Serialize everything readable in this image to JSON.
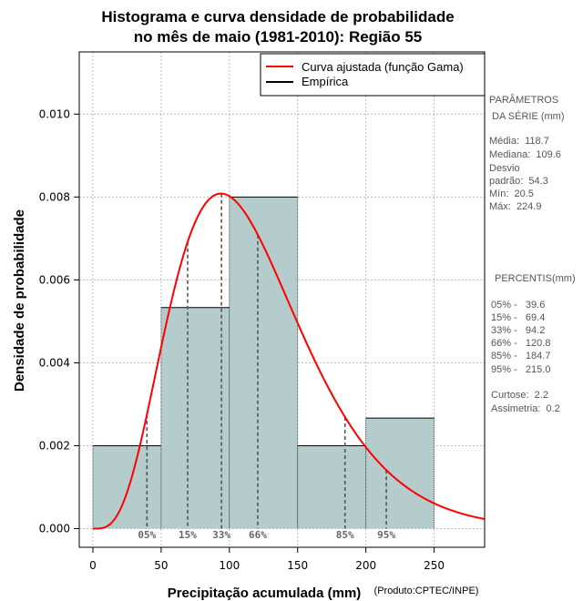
{
  "chart_data": {
    "type": "histogram",
    "title_lines": [
      "Histograma e curva densidade de probabilidade",
      "no mês de maio (1981-2010): Região 55"
    ],
    "xlabel": "Precipitação acumulada (mm)",
    "ylabel": "Densidade de probabilidade",
    "credit": "(Produto:CPTEC/INPE)",
    "xlim": [
      -10,
      287
    ],
    "ylim": [
      -0.00045,
      0.0115
    ],
    "x_ticks": [
      0,
      50,
      100,
      150,
      200,
      250
    ],
    "y_ticks": [
      0.0,
      0.002,
      0.004,
      0.006,
      0.008,
      0.01
    ],
    "y_tick_labels": [
      "0.000",
      "0.002",
      "0.004",
      "0.006",
      "0.008",
      "0.010"
    ],
    "grid": true,
    "bins": [
      {
        "start": 0,
        "end": 50,
        "density": 0.002
      },
      {
        "start": 50,
        "end": 100,
        "density": 0.005333
      },
      {
        "start": 100,
        "end": 150,
        "density": 0.008
      },
      {
        "start": 150,
        "end": 200,
        "density": 0.002
      },
      {
        "start": 200,
        "end": 250,
        "density": 0.002667
      }
    ],
    "fitted_curve": {
      "distribution": "gamma",
      "mean": 118.7,
      "sd": 54.3
    },
    "percentile_markers": [
      {
        "label": "05%",
        "value": 39.6
      },
      {
        "label": "15%",
        "value": 69.4
      },
      {
        "label": "33%",
        "value": 94.2
      },
      {
        "label": "66%",
        "value": 120.8
      },
      {
        "label": "85%",
        "value": 184.7
      },
      {
        "label": "95%",
        "value": 215.0
      }
    ],
    "legend": {
      "position": "top-right",
      "entries": [
        {
          "label": "Curva ajustada (função Gama)",
          "color": "#ff0000"
        },
        {
          "label": "Empírica",
          "color": "#000000"
        }
      ]
    },
    "colors": {
      "bar_fill": "#b4cccc",
      "curve": "#ff0000",
      "grid": "#bbbbbb",
      "marker": "#555555"
    }
  },
  "side_panel": {
    "parametros_title": [
      "PARÂMETROS",
      " DA SÉRIE (mm)"
    ],
    "parametros": [
      "Média:  118.7",
      "Mediana:  109.6",
      "Desvio",
      "padrão:  54.3",
      "Mín:  20.5",
      "Máx:  224.9"
    ],
    "percentis_title": "PERCENTIS(mm)",
    "percentis": [
      "05% -   39.6",
      "15% -   69.4",
      "33% -   94.2",
      "66% -   120.8",
      "85% -   184.7",
      "95% -   215.0"
    ],
    "extra": [
      "Curtose:  2.2",
      "Assimetria:  0.2"
    ]
  }
}
